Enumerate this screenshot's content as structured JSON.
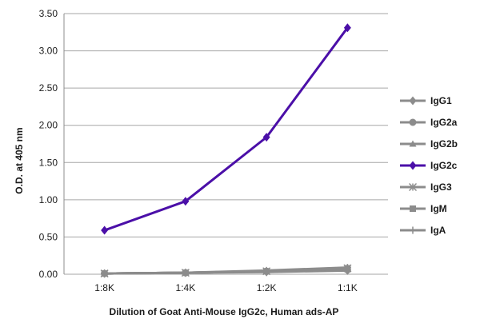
{
  "chart_data": {
    "type": "line",
    "title": "",
    "xlabel": "Dilution of Goat Anti-Mouse IgG2c, Human ads-AP",
    "ylabel": "O.D. at 405 nm",
    "categories": [
      "1:8K",
      "1:4K",
      "1:2K",
      "1:1K"
    ],
    "ylim": [
      0,
      3.5
    ],
    "yticks": [
      "0.00",
      "0.50",
      "1.00",
      "1.50",
      "2.00",
      "2.50",
      "3.00",
      "3.50"
    ],
    "grid": true,
    "legend_position": "right",
    "series": [
      {
        "name": "IgG1",
        "values": [
          0.01,
          0.02,
          0.03,
          0.05
        ],
        "color": "#8c8c8c",
        "marker": "diamond"
      },
      {
        "name": "IgG2a",
        "values": [
          0.01,
          0.02,
          0.04,
          0.06
        ],
        "color": "#8c8c8c",
        "marker": "circle"
      },
      {
        "name": "IgG2b",
        "values": [
          0.01,
          0.02,
          0.04,
          0.07
        ],
        "color": "#8c8c8c",
        "marker": "triangle"
      },
      {
        "name": "IgG2c",
        "values": [
          0.59,
          0.98,
          1.84,
          3.31
        ],
        "color": "#4b0fa8",
        "marker": "diamond"
      },
      {
        "name": "IgG3",
        "values": [
          0.01,
          0.02,
          0.04,
          0.08
        ],
        "color": "#8c8c8c",
        "marker": "star"
      },
      {
        "name": "IgM",
        "values": [
          0.01,
          0.02,
          0.04,
          0.08
        ],
        "color": "#8c8c8c",
        "marker": "square"
      },
      {
        "name": "IgA",
        "values": [
          0.01,
          0.02,
          0.05,
          0.09
        ],
        "color": "#8c8c8c",
        "marker": "plus"
      }
    ]
  }
}
